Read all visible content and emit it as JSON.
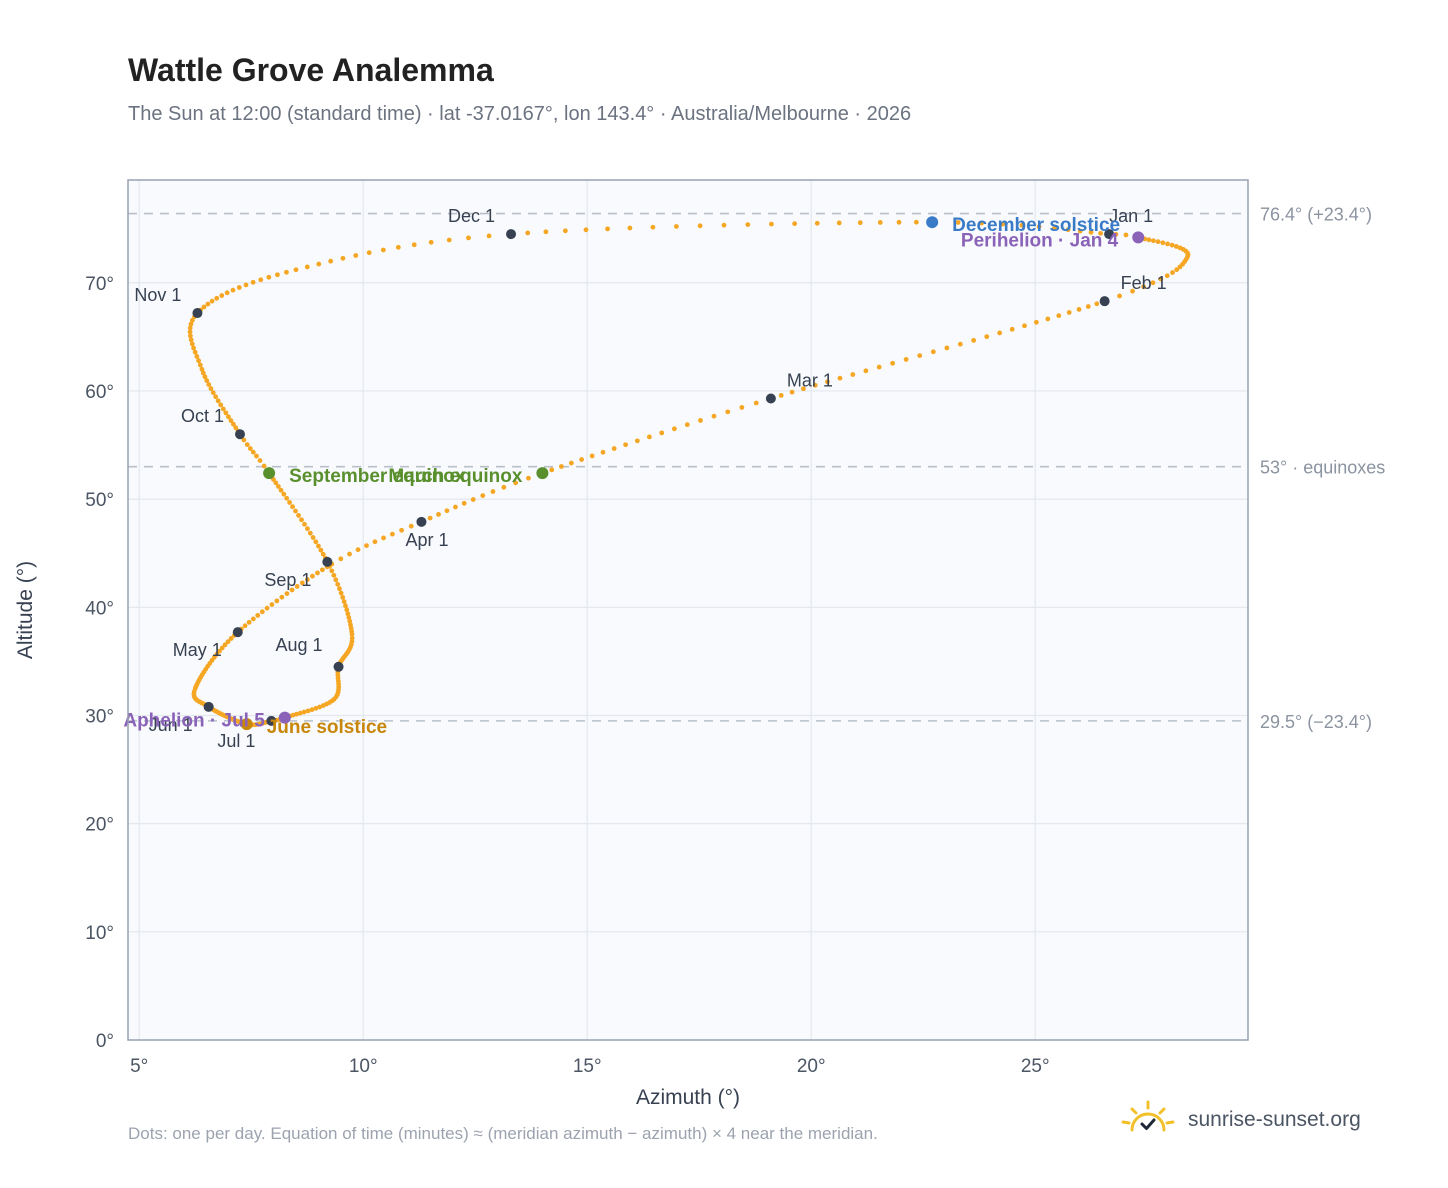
{
  "header": {
    "title": "Wattle Grove Analemma",
    "subtitle": "The Sun at 12:00 (standard time) · lat -37.0167°, lon 143.4° · Australia/Melbourne · 2026"
  },
  "footer": {
    "note": "Dots: one per day. Equation of time (minutes) ≈ (meridian azimuth − azimuth) × 4 near the meridian.",
    "brand": "sunrise-sunset.org",
    "brand_icon": "sun-icon"
  },
  "colors": {
    "curve": "#f5a623",
    "month_marker": "#374151",
    "equinox": "#5a8f2e",
    "december_solstice": "#3a7bc8",
    "june_solstice": "#c8860a",
    "apsis": "#8a63b8",
    "reference_line": "#b9c0ca",
    "plot_background": "#f8fafd",
    "grid": "#e3e8ee",
    "frame": "#98a2b1"
  },
  "chart_data": {
    "type": "scatter",
    "xlabel": "Azimuth (°)",
    "ylabel": "Altitude (°)",
    "xlim": [
      4.75,
      29.75
    ],
    "ylim": [
      0,
      79.5
    ],
    "x_ticks": [
      5,
      10,
      15,
      20,
      25
    ],
    "x_tick_labels": [
      "5°",
      "10°",
      "15°",
      "20°",
      "25°"
    ],
    "y_ticks": [
      0,
      10,
      20,
      30,
      40,
      50,
      60,
      70
    ],
    "y_tick_labels": [
      "0°",
      "10°",
      "20°",
      "30°",
      "40°",
      "50°",
      "60°",
      "70°"
    ],
    "grid": true,
    "reference_lines": [
      {
        "y": 76.4,
        "label": "76.4° (+23.4°)"
      },
      {
        "y": 53.0,
        "label": "53° · equinoxes"
      },
      {
        "y": 29.5,
        "label": "29.5° (−23.4°)"
      }
    ],
    "anchors": [
      {
        "day": 0,
        "x": 26.65,
        "y": 74.5
      },
      {
        "day": 3,
        "x": 27.3,
        "y": 74.2
      },
      {
        "day": 18,
        "x": 28.4,
        "y": 72.4
      },
      {
        "day": 31,
        "x": 26.55,
        "y": 68.3
      },
      {
        "day": 59,
        "x": 19.1,
        "y": 59.3
      },
      {
        "day": 78,
        "x": 14.0,
        "y": 52.4
      },
      {
        "day": 90,
        "x": 11.3,
        "y": 47.9
      },
      {
        "day": 100,
        "x": 9.3,
        "y": 44.0
      },
      {
        "day": 120,
        "x": 7.2,
        "y": 37.7
      },
      {
        "day": 140,
        "x": 6.25,
        "y": 32.5
      },
      {
        "day": 151,
        "x": 6.55,
        "y": 30.8
      },
      {
        "day": 171,
        "x": 7.4,
        "y": 29.2
      },
      {
        "day": 181,
        "x": 7.95,
        "y": 29.5
      },
      {
        "day": 185,
        "x": 8.25,
        "y": 29.8
      },
      {
        "day": 200,
        "x": 9.35,
        "y": 31.5
      },
      {
        "day": 212,
        "x": 9.45,
        "y": 34.5
      },
      {
        "day": 225,
        "x": 9.75,
        "y": 37.5
      },
      {
        "day": 243,
        "x": 9.2,
        "y": 44.2
      },
      {
        "day": 265,
        "x": 7.9,
        "y": 52.4
      },
      {
        "day": 273,
        "x": 7.25,
        "y": 56.0
      },
      {
        "day": 290,
        "x": 6.4,
        "y": 62.0
      },
      {
        "day": 304,
        "x": 6.3,
        "y": 67.2
      },
      {
        "day": 320,
        "x": 8.5,
        "y": 71.2
      },
      {
        "day": 334,
        "x": 13.3,
        "y": 74.5
      },
      {
        "day": 354,
        "x": 22.7,
        "y": 75.6
      },
      {
        "day": 365,
        "x": 26.65,
        "y": 74.5
      }
    ],
    "month_markers": [
      {
        "label": "Jan 1",
        "x": 26.65,
        "y": 74.5
      },
      {
        "label": "Feb 1",
        "x": 26.55,
        "y": 68.3
      },
      {
        "label": "Mar 1",
        "x": 19.1,
        "y": 59.3
      },
      {
        "label": "Apr 1",
        "x": 11.3,
        "y": 47.9
      },
      {
        "label": "May 1",
        "x": 7.2,
        "y": 37.7
      },
      {
        "label": "Jun 1",
        "x": 6.55,
        "y": 30.8
      },
      {
        "label": "Jul 1",
        "x": 7.95,
        "y": 29.5
      },
      {
        "label": "Aug 1",
        "x": 9.45,
        "y": 34.5
      },
      {
        "label": "Sep 1",
        "x": 9.2,
        "y": 44.2
      },
      {
        "label": "Oct 1",
        "x": 7.25,
        "y": 56.0
      },
      {
        "label": "Nov 1",
        "x": 6.3,
        "y": 67.2
      },
      {
        "label": "Dec 1",
        "x": 13.3,
        "y": 74.5
      }
    ],
    "events": [
      {
        "label": "March equinox",
        "x": 14.0,
        "y": 52.4,
        "kind": "equinox"
      },
      {
        "label": "September equinox",
        "x": 7.9,
        "y": 52.4,
        "kind": "equinox"
      },
      {
        "label": "December solstice",
        "x": 22.7,
        "y": 75.6,
        "kind": "december_solstice"
      },
      {
        "label": "June solstice",
        "x": 7.4,
        "y": 29.2,
        "kind": "june_solstice"
      },
      {
        "label": "Perihelion · Jan 4",
        "x": 27.3,
        "y": 74.2,
        "kind": "apsis"
      },
      {
        "label": "Aphelion · Jul 5",
        "x": 8.25,
        "y": 29.8,
        "kind": "apsis"
      }
    ]
  }
}
